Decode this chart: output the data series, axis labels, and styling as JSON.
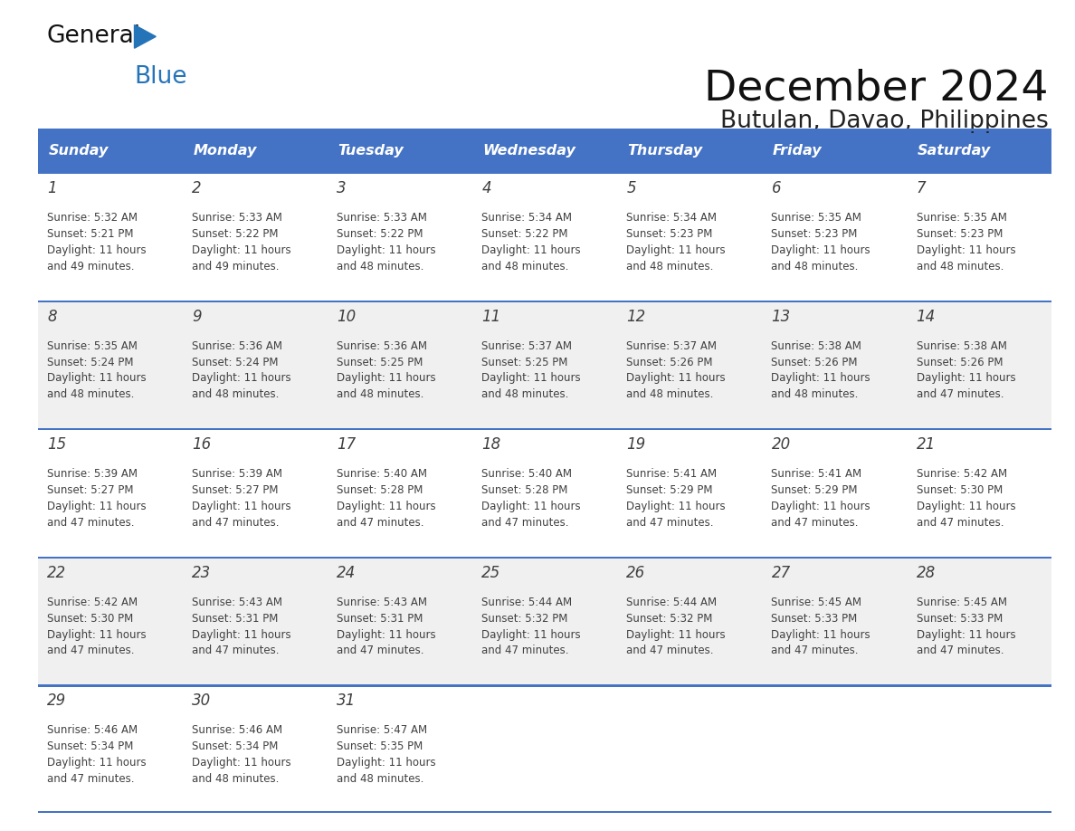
{
  "title": "December 2024",
  "subtitle": "Butulan, Davao, Philippines",
  "days_of_week": [
    "Sunday",
    "Monday",
    "Tuesday",
    "Wednesday",
    "Thursday",
    "Friday",
    "Saturday"
  ],
  "header_bg": "#4472C4",
  "header_text": "#FFFFFF",
  "row_bg_odd": "#FFFFFF",
  "row_bg_even": "#F0F0F0",
  "border_color": "#4472C4",
  "text_color": "#404040",
  "calendar_data": [
    [
      {
        "day": 1,
        "sunrise": "5:32 AM",
        "sunset": "5:21 PM",
        "daylight": "11 hours\nand 49 minutes."
      },
      {
        "day": 2,
        "sunrise": "5:33 AM",
        "sunset": "5:22 PM",
        "daylight": "11 hours\nand 49 minutes."
      },
      {
        "day": 3,
        "sunrise": "5:33 AM",
        "sunset": "5:22 PM",
        "daylight": "11 hours\nand 48 minutes."
      },
      {
        "day": 4,
        "sunrise": "5:34 AM",
        "sunset": "5:22 PM",
        "daylight": "11 hours\nand 48 minutes."
      },
      {
        "day": 5,
        "sunrise": "5:34 AM",
        "sunset": "5:23 PM",
        "daylight": "11 hours\nand 48 minutes."
      },
      {
        "day": 6,
        "sunrise": "5:35 AM",
        "sunset": "5:23 PM",
        "daylight": "11 hours\nand 48 minutes."
      },
      {
        "day": 7,
        "sunrise": "5:35 AM",
        "sunset": "5:23 PM",
        "daylight": "11 hours\nand 48 minutes."
      }
    ],
    [
      {
        "day": 8,
        "sunrise": "5:35 AM",
        "sunset": "5:24 PM",
        "daylight": "11 hours\nand 48 minutes."
      },
      {
        "day": 9,
        "sunrise": "5:36 AM",
        "sunset": "5:24 PM",
        "daylight": "11 hours\nand 48 minutes."
      },
      {
        "day": 10,
        "sunrise": "5:36 AM",
        "sunset": "5:25 PM",
        "daylight": "11 hours\nand 48 minutes."
      },
      {
        "day": 11,
        "sunrise": "5:37 AM",
        "sunset": "5:25 PM",
        "daylight": "11 hours\nand 48 minutes."
      },
      {
        "day": 12,
        "sunrise": "5:37 AM",
        "sunset": "5:26 PM",
        "daylight": "11 hours\nand 48 minutes."
      },
      {
        "day": 13,
        "sunrise": "5:38 AM",
        "sunset": "5:26 PM",
        "daylight": "11 hours\nand 48 minutes."
      },
      {
        "day": 14,
        "sunrise": "5:38 AM",
        "sunset": "5:26 PM",
        "daylight": "11 hours\nand 47 minutes."
      }
    ],
    [
      {
        "day": 15,
        "sunrise": "5:39 AM",
        "sunset": "5:27 PM",
        "daylight": "11 hours\nand 47 minutes."
      },
      {
        "day": 16,
        "sunrise": "5:39 AM",
        "sunset": "5:27 PM",
        "daylight": "11 hours\nand 47 minutes."
      },
      {
        "day": 17,
        "sunrise": "5:40 AM",
        "sunset": "5:28 PM",
        "daylight": "11 hours\nand 47 minutes."
      },
      {
        "day": 18,
        "sunrise": "5:40 AM",
        "sunset": "5:28 PM",
        "daylight": "11 hours\nand 47 minutes."
      },
      {
        "day": 19,
        "sunrise": "5:41 AM",
        "sunset": "5:29 PM",
        "daylight": "11 hours\nand 47 minutes."
      },
      {
        "day": 20,
        "sunrise": "5:41 AM",
        "sunset": "5:29 PM",
        "daylight": "11 hours\nand 47 minutes."
      },
      {
        "day": 21,
        "sunrise": "5:42 AM",
        "sunset": "5:30 PM",
        "daylight": "11 hours\nand 47 minutes."
      }
    ],
    [
      {
        "day": 22,
        "sunrise": "5:42 AM",
        "sunset": "5:30 PM",
        "daylight": "11 hours\nand 47 minutes."
      },
      {
        "day": 23,
        "sunrise": "5:43 AM",
        "sunset": "5:31 PM",
        "daylight": "11 hours\nand 47 minutes."
      },
      {
        "day": 24,
        "sunrise": "5:43 AM",
        "sunset": "5:31 PM",
        "daylight": "11 hours\nand 47 minutes."
      },
      {
        "day": 25,
        "sunrise": "5:44 AM",
        "sunset": "5:32 PM",
        "daylight": "11 hours\nand 47 minutes."
      },
      {
        "day": 26,
        "sunrise": "5:44 AM",
        "sunset": "5:32 PM",
        "daylight": "11 hours\nand 47 minutes."
      },
      {
        "day": 27,
        "sunrise": "5:45 AM",
        "sunset": "5:33 PM",
        "daylight": "11 hours\nand 47 minutes."
      },
      {
        "day": 28,
        "sunrise": "5:45 AM",
        "sunset": "5:33 PM",
        "daylight": "11 hours\nand 47 minutes."
      }
    ],
    [
      {
        "day": 29,
        "sunrise": "5:46 AM",
        "sunset": "5:34 PM",
        "daylight": "11 hours\nand 47 minutes."
      },
      {
        "day": 30,
        "sunrise": "5:46 AM",
        "sunset": "5:34 PM",
        "daylight": "11 hours\nand 48 minutes."
      },
      {
        "day": 31,
        "sunrise": "5:47 AM",
        "sunset": "5:35 PM",
        "daylight": "11 hours\nand 48 minutes."
      },
      null,
      null,
      null,
      null
    ]
  ]
}
